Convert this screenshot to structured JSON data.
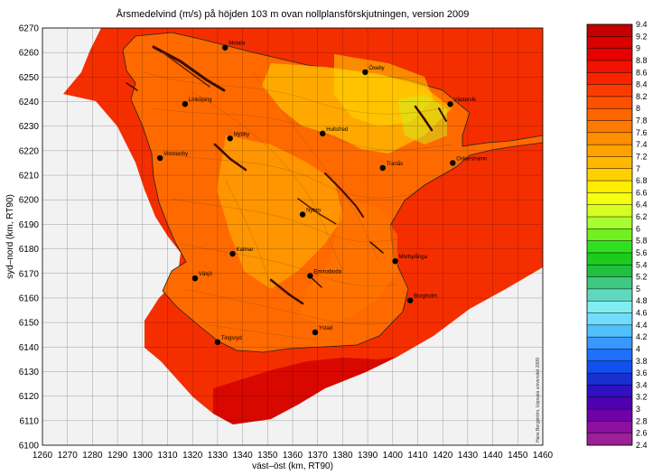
{
  "chart_data": {
    "type": "heatmap",
    "title": "Årsmedelvind (m/s) på höjden 103 m ovan nollplansförskjutningen, version 2009",
    "xlabel": "väst–öst (km, RT90)",
    "ylabel": "syd–nord (km, RT90)",
    "xlim": [
      1260,
      1460
    ],
    "ylim": [
      6100,
      6270
    ],
    "xticks": [
      "1260",
      "1270",
      "1280",
      "1290",
      "1300",
      "1310",
      "1320",
      "1330",
      "1340",
      "1350",
      "1360",
      "1370",
      "1380",
      "1390",
      "1400",
      "1410",
      "1420",
      "1430",
      "1440",
      "1450",
      "1460"
    ],
    "yticks": [
      "6100",
      "6110",
      "6120",
      "6130",
      "6140",
      "6150",
      "6160",
      "6170",
      "6180",
      "6190",
      "6200",
      "6210",
      "6220",
      "6230",
      "6240",
      "6250",
      "6260",
      "6270"
    ],
    "grid": true,
    "credit": "Hans Bergström, Uppsala universitet 2009",
    "colorbar": {
      "unit": "m/s",
      "levels": [
        "9.4",
        "9.2",
        "9",
        "8.8",
        "8.6",
        "8.4",
        "8.2",
        "8",
        "7.8",
        "7.6",
        "7.4",
        "7.2",
        "7",
        "6.8",
        "6.6",
        "6.4",
        "6.2",
        "6",
        "5.8",
        "5.6",
        "5.4",
        "5.2",
        "5",
        "4.8",
        "4.6",
        "4.4",
        "4.2",
        "4",
        "3.8",
        "3.6",
        "3.4",
        "3.2",
        "3",
        "2.8",
        "2.6",
        "2.4"
      ],
      "colors": [
        "#c40000",
        "#d80000",
        "#e60000",
        "#f21000",
        "#f82400",
        "#fb3c00",
        "#fd5000",
        "#fe6600",
        "#ff7a00",
        "#ff8e00",
        "#ffa200",
        "#ffb800",
        "#ffd000",
        "#ffee00",
        "#f4ff10",
        "#d4ff20",
        "#a8ff30",
        "#70f020",
        "#30e020",
        "#1ccc1c",
        "#20c040",
        "#40c880",
        "#60d8c0",
        "#80eef0",
        "#70ddff",
        "#50c0ff",
        "#3898ff",
        "#2070ff",
        "#1050f0",
        "#1830d0",
        "#3010c0",
        "#5000b0",
        "#7000a8",
        "#8c10a0",
        "#9c2098"
      ]
    },
    "places": [
      {
        "name": "Motala",
        "x": 1333,
        "y": 6262
      },
      {
        "name": "Öxeby",
        "x": 1389,
        "y": 6252
      },
      {
        "name": "Linköping",
        "x": 1317,
        "y": 6239
      },
      {
        "name": "Västervik",
        "x": 1423,
        "y": 6239
      },
      {
        "name": "Mjölby",
        "x": 1335,
        "y": 6225
      },
      {
        "name": "Hultsfred",
        "x": 1372,
        "y": 6227
      },
      {
        "name": "Vimmerby",
        "x": 1307,
        "y": 6217
      },
      {
        "name": "Tranås",
        "x": 1396,
        "y": 6213
      },
      {
        "name": "Oskarshamn",
        "x": 1424,
        "y": 6215
      },
      {
        "name": "Nybro",
        "x": 1364,
        "y": 6194
      },
      {
        "name": "Kalmar",
        "x": 1336,
        "y": 6178
      },
      {
        "name": "Mörbylånga",
        "x": 1401,
        "y": 6175
      },
      {
        "name": "Växjö",
        "x": 1321,
        "y": 6168
      },
      {
        "name": "Emmaboda",
        "x": 1367,
        "y": 6169
      },
      {
        "name": "Borgholm",
        "x": 1407,
        "y": 6159
      },
      {
        "name": "Tingsryd",
        "x": 1330,
        "y": 6142
      },
      {
        "name": "Ystad",
        "x": 1369,
        "y": 6146
      }
    ]
  }
}
